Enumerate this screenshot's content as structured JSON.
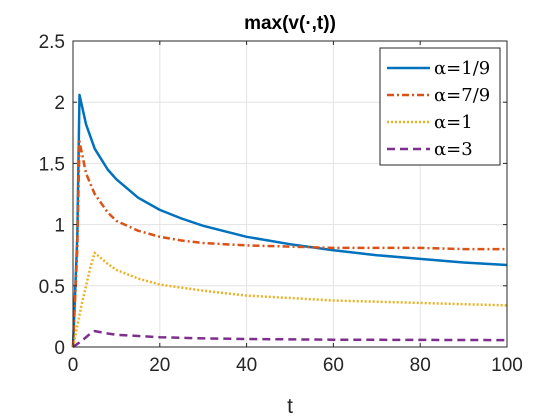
{
  "chart_data": {
    "type": "line",
    "title": "max(v(·,t))",
    "xlabel": "t",
    "ylabel": "",
    "xlim": [
      0,
      100
    ],
    "ylim": [
      0,
      2.5
    ],
    "xticks": [
      "0",
      "20",
      "40",
      "60",
      "80",
      "100"
    ],
    "yticks": [
      "0",
      "0.5",
      "1",
      "1.5",
      "2",
      "2.5"
    ],
    "grid": true,
    "legend_position": "top-right",
    "series": [
      {
        "name": "α=1/9",
        "color": "#0072BD",
        "style": "solid",
        "x": [
          0,
          1,
          1.5,
          3,
          5,
          8,
          10,
          15,
          20,
          25,
          30,
          40,
          50,
          60,
          70,
          80,
          90,
          100
        ],
        "y": [
          0,
          0.9,
          2.06,
          1.82,
          1.62,
          1.45,
          1.37,
          1.22,
          1.12,
          1.05,
          0.99,
          0.9,
          0.84,
          0.79,
          0.75,
          0.72,
          0.69,
          0.67
        ]
      },
      {
        "name": "α=7/9",
        "color": "#D95319",
        "style": "dashdot",
        "x": [
          0,
          1,
          1.5,
          3,
          5,
          8,
          10,
          15,
          20,
          25,
          30,
          40,
          50,
          60,
          70,
          80,
          90,
          100
        ],
        "y": [
          0,
          0.8,
          1.68,
          1.42,
          1.25,
          1.1,
          1.03,
          0.95,
          0.9,
          0.87,
          0.85,
          0.83,
          0.82,
          0.81,
          0.81,
          0.81,
          0.8,
          0.8
        ]
      },
      {
        "name": "α=1",
        "color": "#EDB120",
        "style": "dotted",
        "x": [
          0,
          2,
          4,
          5,
          6,
          8,
          10,
          15,
          20,
          30,
          40,
          50,
          60,
          70,
          80,
          90,
          100
        ],
        "y": [
          0,
          0.35,
          0.65,
          0.77,
          0.74,
          0.68,
          0.63,
          0.56,
          0.51,
          0.46,
          0.42,
          0.4,
          0.38,
          0.37,
          0.36,
          0.35,
          0.34
        ]
      },
      {
        "name": "α=3",
        "color": "#7E2F8E",
        "style": "dashed",
        "x": [
          0,
          2,
          4,
          5,
          8,
          10,
          20,
          30,
          40,
          60,
          80,
          100
        ],
        "y": [
          0,
          0.05,
          0.11,
          0.13,
          0.11,
          0.1,
          0.08,
          0.07,
          0.065,
          0.06,
          0.058,
          0.056
        ]
      }
    ]
  }
}
